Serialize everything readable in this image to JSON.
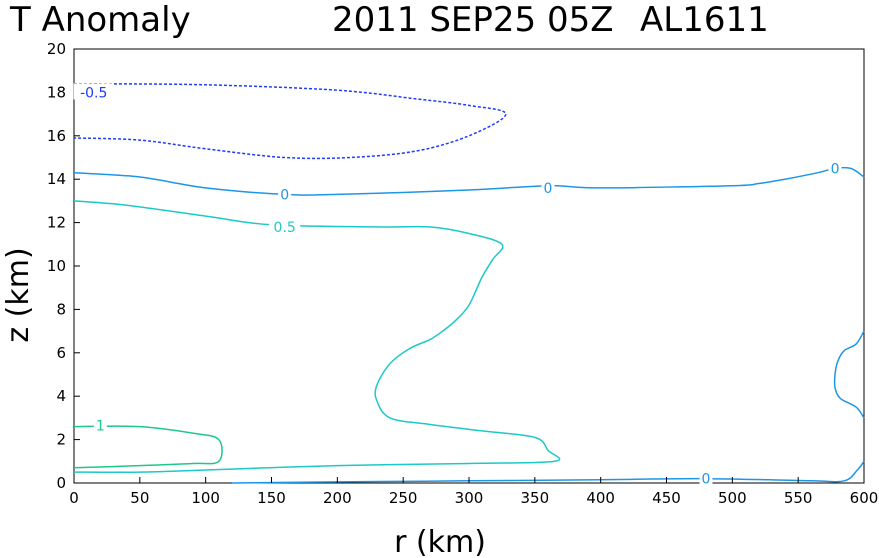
{
  "title": {
    "field": "T Anomaly",
    "datetime": "2011 SEP25 05Z",
    "storm_id": "AL1611"
  },
  "chart_data": {
    "type": "contour",
    "title": "T Anomaly   2011 SEP25 05Z   AL1611",
    "xlabel": "r (km)",
    "ylabel": "z (km)",
    "xlim": [
      0,
      600
    ],
    "ylim": [
      0,
      20
    ],
    "x_ticks": [
      0,
      50,
      100,
      150,
      200,
      250,
      300,
      350,
      400,
      450,
      500,
      550,
      600
    ],
    "y_ticks": [
      0,
      2,
      4,
      6,
      8,
      10,
      12,
      14,
      16,
      18,
      20
    ],
    "grid": false,
    "contours": [
      {
        "level": "-0.5",
        "color": "#1e3cff",
        "dashed": true,
        "label_pos": [
          15,
          18.0
        ],
        "points": [
          [
            0,
            18.4
          ],
          [
            100,
            18.35
          ],
          [
            200,
            18.1
          ],
          [
            260,
            17.7
          ],
          [
            300,
            17.4
          ],
          [
            328,
            17.0
          ],
          [
            300,
            16.0
          ],
          [
            260,
            15.3
          ],
          [
            210,
            15.0
          ],
          [
            160,
            15.0
          ],
          [
            100,
            15.4
          ],
          [
            50,
            15.8
          ],
          [
            0,
            15.9
          ]
        ]
      },
      {
        "level": "0",
        "color": "#1e96e6",
        "dashed": false,
        "label_pos": [
          160,
          13.3
        ],
        "points": [
          [
            0,
            14.3
          ],
          [
            50,
            14.1
          ],
          [
            100,
            13.6
          ],
          [
            160,
            13.3
          ],
          [
            200,
            13.3
          ],
          [
            300,
            13.5
          ],
          [
            360,
            13.7
          ],
          [
            400,
            13.6
          ],
          [
            500,
            13.7
          ],
          [
            520,
            13.8
          ],
          [
            540,
            14.0
          ],
          [
            565,
            14.3
          ],
          [
            578,
            14.5
          ],
          [
            590,
            14.5
          ],
          [
            600,
            14.1
          ]
        ]
      },
      {
        "level": "0",
        "color": "#1e96e6",
        "dashed": false,
        "label_pos": [
          360,
          13.6
        ],
        "points": []
      },
      {
        "level": "0",
        "color": "#1e96e6",
        "dashed": false,
        "label_pos": [
          578,
          14.5
        ],
        "points": []
      },
      {
        "level": "0",
        "color": "#1e96e6",
        "dashed": false,
        "label_pos": null,
        "points": [
          [
            600,
            7.0
          ],
          [
            594,
            6.4
          ],
          [
            585,
            6.1
          ],
          [
            580,
            5.6
          ],
          [
            578,
            5.0
          ],
          [
            578,
            4.4
          ],
          [
            582,
            3.9
          ],
          [
            594,
            3.5
          ],
          [
            600,
            3.0
          ]
        ]
      },
      {
        "level": "0",
        "color": "#1e96e6",
        "dashed": false,
        "label_pos": [
          480,
          0.2
        ],
        "points": [
          [
            120,
            0
          ],
          [
            200,
            0.05
          ],
          [
            300,
            0.1
          ],
          [
            400,
            0.15
          ],
          [
            480,
            0.2
          ],
          [
            560,
            0.1
          ],
          [
            585,
            0.1
          ],
          [
            595,
            0.6
          ],
          [
            600,
            1.0
          ]
        ]
      },
      {
        "level": "0.5",
        "color": "#1ec8c8",
        "dashed": false,
        "label_pos": [
          160,
          11.8
        ],
        "points": [
          [
            0,
            13.0
          ],
          [
            40,
            12.8
          ],
          [
            100,
            12.3
          ],
          [
            150,
            11.9
          ],
          [
            230,
            11.8
          ],
          [
            270,
            11.8
          ],
          [
            300,
            11.5
          ],
          [
            325,
            11.0
          ],
          [
            318,
            10.3
          ],
          [
            310,
            9.5
          ],
          [
            300,
            8.2
          ],
          [
            290,
            7.5
          ],
          [
            280,
            7.0
          ],
          [
            270,
            6.6
          ],
          [
            255,
            6.2
          ],
          [
            240,
            5.5
          ],
          [
            230,
            4.5
          ],
          [
            230,
            3.8
          ],
          [
            240,
            3.0
          ],
          [
            270,
            2.7
          ],
          [
            310,
            2.4
          ],
          [
            350,
            2.1
          ],
          [
            360,
            1.5
          ],
          [
            365,
            1.0
          ],
          [
            300,
            0.9
          ],
          [
            200,
            0.8
          ],
          [
            100,
            0.6
          ],
          [
            50,
            0.5
          ],
          [
            0,
            0.5
          ]
        ]
      },
      {
        "level": "1",
        "color": "#1ec88c",
        "dashed": false,
        "label_pos": [
          20,
          2.65
        ],
        "points": [
          [
            0,
            2.6
          ],
          [
            50,
            2.6
          ],
          [
            90,
            2.3
          ],
          [
            110,
            2.0
          ],
          [
            110,
            1.0
          ],
          [
            90,
            0.9
          ],
          [
            50,
            0.8
          ],
          [
            0,
            0.7
          ]
        ]
      }
    ]
  }
}
